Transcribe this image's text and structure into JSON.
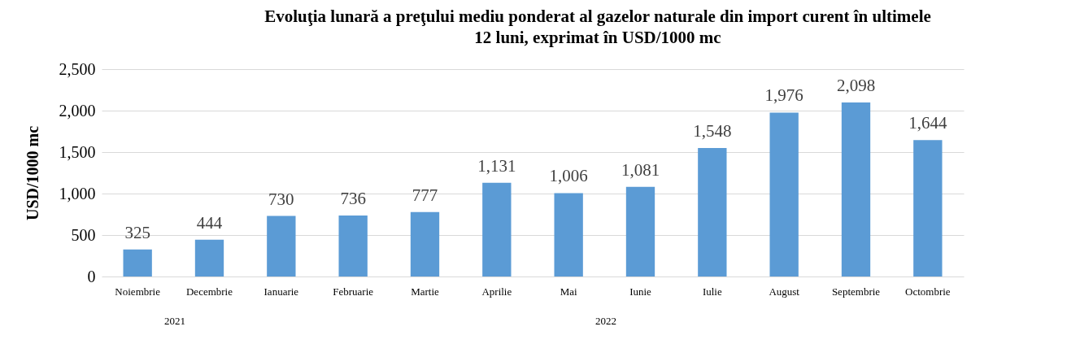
{
  "chart_data": {
    "type": "bar",
    "title": [
      "Evoluţia lunară a preţului mediu ponderat al gazelor naturale din import curent în ultimele",
      "12 luni, exprimat în USD/1000 mc"
    ],
    "ylabel": "USD/1000 mc",
    "categories": [
      "Noiembrie",
      "Decembrie",
      "Ianuarie",
      "Februarie",
      "Martie",
      "Aprilie",
      "Mai",
      "Iunie",
      "Iulie",
      "August",
      "Septembrie",
      "Octombrie"
    ],
    "values": [
      325,
      444,
      730,
      736,
      777,
      1131,
      1006,
      1081,
      1548,
      1976,
      2098,
      1644
    ],
    "value_labels": [
      "325",
      "444",
      "730",
      "736",
      "777",
      "1,131",
      "1,006",
      "1,081",
      "1,548",
      "1,976",
      "2,098",
      "1,644"
    ],
    "color": "#5b9bd5",
    "ylim": [
      0,
      2500
    ],
    "yticks": [
      0,
      {
        "value": 500,
        "label": "500"
      },
      {
        "value": 1000,
        "label": "1,000"
      },
      {
        "value": 1500,
        "label": "1,500"
      },
      {
        "value": 2000,
        "label": "2,000"
      },
      {
        "value": 2500,
        "label": "2,500"
      }
    ],
    "grid": "y",
    "annotations": [
      "2021",
      "2022"
    ]
  }
}
